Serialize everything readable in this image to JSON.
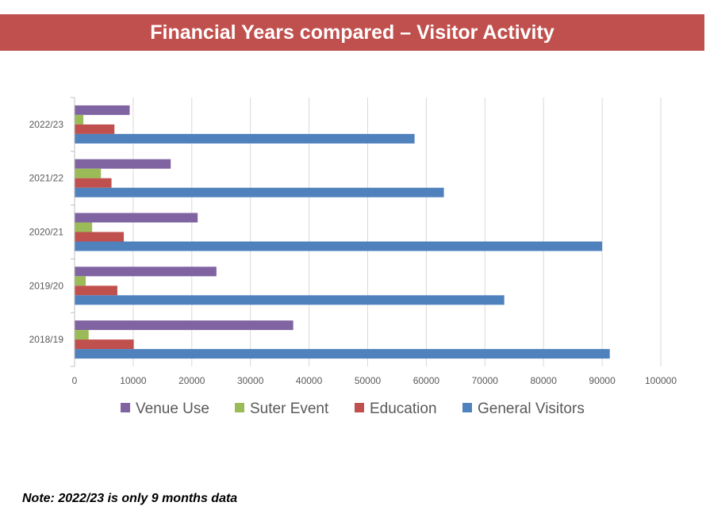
{
  "header": {
    "title": "Financial Years compared – Visitor Activity"
  },
  "note": "Note: 2022/23 is only 9 months data",
  "chart_data": {
    "type": "bar",
    "orientation": "horizontal",
    "title": "Financial Years compared – Visitor Activity",
    "categories": [
      "2022/23",
      "2021/22",
      "2020/21",
      "2019/20",
      "2018/19"
    ],
    "series": [
      {
        "name": "Venue Use",
        "color": "#8064a2",
        "values": [
          9400,
          16400,
          21000,
          24200,
          37300
        ]
      },
      {
        "name": "Suter Event",
        "color": "#9bbb59",
        "values": [
          1500,
          4500,
          3000,
          1900,
          2400
        ]
      },
      {
        "name": "Education",
        "color": "#c0504d",
        "values": [
          6800,
          6300,
          8400,
          7300,
          10100
        ]
      },
      {
        "name": "General Visitors",
        "color": "#4f81bd",
        "values": [
          58000,
          63000,
          90000,
          73300,
          91300
        ]
      }
    ],
    "xlim": [
      0,
      100000
    ],
    "x_ticks": [
      "0",
      "10000",
      "20000",
      "30000",
      "40000",
      "50000",
      "60000",
      "70000",
      "80000",
      "90000",
      "100000"
    ],
    "grid": true,
    "legend_position": "bottom"
  }
}
